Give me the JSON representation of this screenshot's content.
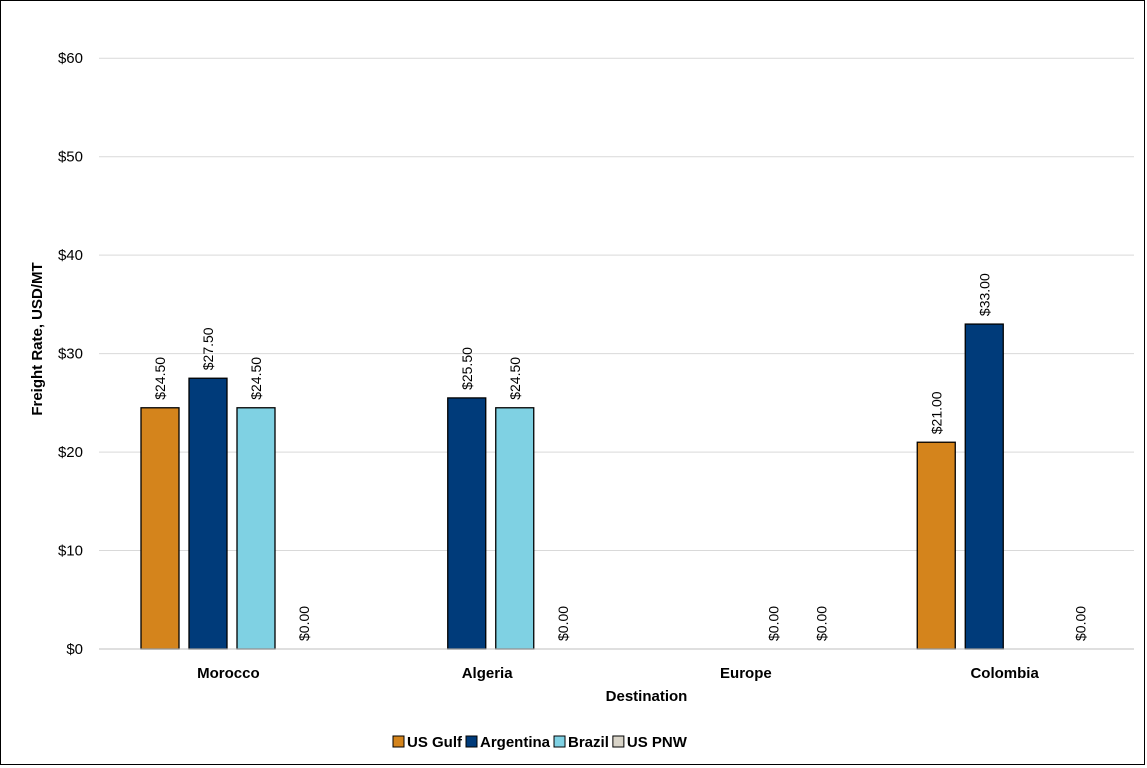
{
  "chart_data": {
    "type": "bar",
    "categories": [
      "Morocco",
      "Algeria",
      "Europe",
      "Colombia"
    ],
    "series": [
      {
        "name": "US Gulf",
        "color": "#D4841C",
        "values": [
          24.5,
          null,
          null,
          21.0
        ],
        "labels": [
          "$24.50",
          "",
          "",
          "$21.00"
        ]
      },
      {
        "name": "Argentina",
        "color": "#003B7A",
        "values": [
          27.5,
          25.5,
          null,
          33.0
        ],
        "labels": [
          "$27.50",
          "$25.50",
          "",
          "$33.00"
        ]
      },
      {
        "name": "Brazil",
        "color": "#7FD1E3",
        "values": [
          24.5,
          24.5,
          0,
          null
        ],
        "labels": [
          "$24.50",
          "$24.50",
          "$0.00",
          ""
        ]
      },
      {
        "name": "US PNW",
        "color": "#D9D4C8",
        "values": [
          0,
          0,
          0,
          0
        ],
        "labels": [
          "$0.00",
          "$0.00",
          "$0.00",
          "$0.00"
        ]
      }
    ],
    "xlabel": "Destination",
    "ylabel": "Freight Rate, USD/MT",
    "ylim": [
      0,
      65
    ],
    "yticks": [
      0,
      10,
      20,
      30,
      40,
      50,
      60
    ],
    "ytick_labels": [
      "$0",
      "$10",
      "$20",
      "$30",
      "$40",
      "$50",
      "$60"
    ],
    "grid": true,
    "legend_position": "bottom"
  }
}
